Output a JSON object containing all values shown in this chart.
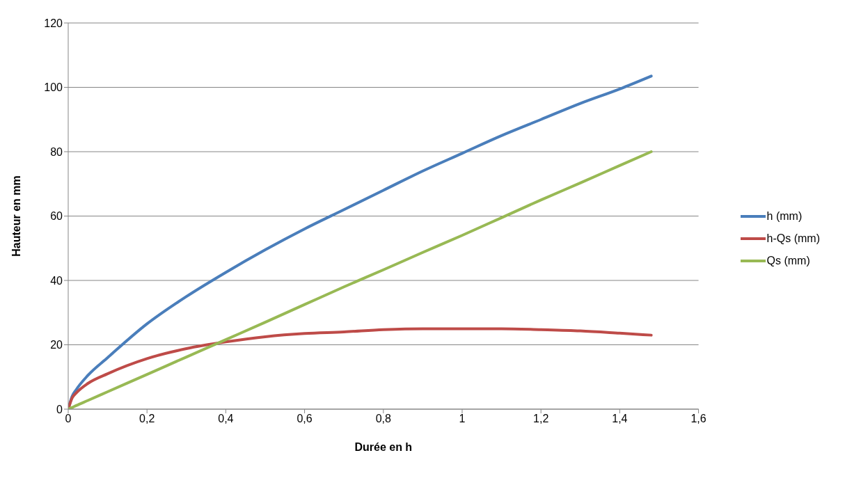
{
  "chart_data": {
    "type": "line",
    "xlabel": "Durée en h",
    "ylabel": "Hauteur en mm",
    "x": [
      0,
      0.01,
      0.02,
      0.05,
      0.1,
      0.2,
      0.3,
      0.4,
      0.5,
      0.6,
      0.7,
      0.8,
      0.9,
      1.0,
      1.1,
      1.2,
      1.3,
      1.4,
      1.48
    ],
    "series": [
      {
        "name": "h (mm)",
        "color": "#4a7ebb",
        "values": [
          0,
          4,
          6,
          10.5,
          16,
          26.5,
          35,
          42.5,
          49.5,
          56,
          62,
          68,
          74,
          79.5,
          85,
          90,
          95,
          99.5,
          103.5
        ]
      },
      {
        "name": "h-Qs (mm)",
        "color": "#be4b48",
        "values": [
          0,
          3.5,
          5,
          8,
          11,
          15.7,
          18.8,
          20.9,
          22.5,
          23.5,
          24,
          24.7,
          25,
          25,
          25,
          24.7,
          24.3,
          23.6,
          23
        ]
      },
      {
        "name": "Qs (mm)",
        "color": "#98b954",
        "values": [
          0,
          0.5,
          1.1,
          2.7,
          5.4,
          10.8,
          16.2,
          21.6,
          27,
          32.5,
          38,
          43.3,
          48.7,
          54,
          59.5,
          65,
          70.3,
          75.7,
          80
        ]
      }
    ],
    "xlim": [
      0,
      1.6
    ],
    "xticks": [
      0,
      {
        "value": 0.2,
        "label": "0,2"
      },
      {
        "value": 0.4,
        "label": "0,4"
      },
      {
        "value": 0.6,
        "label": "0,6"
      },
      {
        "value": 0.8,
        "label": "0,8"
      },
      1,
      {
        "value": 1.2,
        "label": "1,2"
      },
      {
        "value": 1.4,
        "label": "1,4"
      },
      {
        "value": 1.6,
        "label": "1,6"
      }
    ],
    "ylim": [
      0,
      120
    ],
    "yticks": [
      0,
      20,
      40,
      60,
      80,
      100,
      120
    ],
    "grid": "y",
    "legend": "right",
    "marker": "none",
    "line_style": "solid"
  }
}
